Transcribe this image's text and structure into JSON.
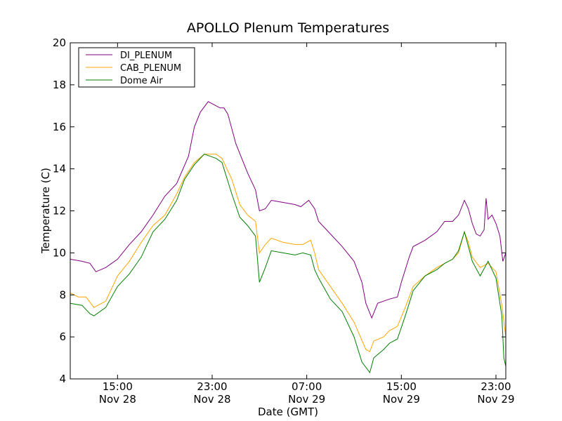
{
  "chart_data": {
    "type": "line",
    "title": "APOLLO Plenum Temperatures",
    "xlabel": "Date (GMT)",
    "ylabel": "Temperature (C)",
    "xlim": [
      "2023-11-28 11:00",
      "2023-11-29 23:50"
    ],
    "ylim": [
      4,
      20
    ],
    "grid": false,
    "legend_position": "top-left",
    "yticks": [
      4,
      6,
      8,
      10,
      12,
      14,
      16,
      18,
      20
    ],
    "xticks": [
      {
        "time": "2023-11-28 15:00",
        "line1": "15:00",
        "line2": "Nov 28"
      },
      {
        "time": "2023-11-28 23:00",
        "line1": "23:00",
        "line2": "Nov 28"
      },
      {
        "time": "2023-11-29 07:00",
        "line1": "07:00",
        "line2": "Nov 29"
      },
      {
        "time": "2023-11-29 15:00",
        "line1": "15:00",
        "line2": "Nov 29"
      },
      {
        "time": "2023-11-29 23:00",
        "line1": "23:00",
        "line2": "Nov 29"
      }
    ],
    "series": [
      {
        "name": "DI_PLENUM",
        "color": "#800080",
        "points": [
          [
            "2023-11-28 11:00",
            9.7
          ],
          [
            "2023-11-28 12:00",
            9.6
          ],
          [
            "2023-11-28 12:40",
            9.5
          ],
          [
            "2023-11-28 13:10",
            9.1
          ],
          [
            "2023-11-28 14:00",
            9.3
          ],
          [
            "2023-11-28 15:00",
            9.7
          ],
          [
            "2023-11-28 16:00",
            10.4
          ],
          [
            "2023-11-28 17:00",
            11.0
          ],
          [
            "2023-11-28 18:00",
            11.8
          ],
          [
            "2023-11-28 19:00",
            12.7
          ],
          [
            "2023-11-28 20:00",
            13.3
          ],
          [
            "2023-11-28 21:00",
            14.6
          ],
          [
            "2023-11-28 21:30",
            16.0
          ],
          [
            "2023-11-28 22:00",
            16.7
          ],
          [
            "2023-11-28 22:40",
            17.2
          ],
          [
            "2023-11-28 23:20",
            17.0
          ],
          [
            "2023-11-28 23:40",
            16.9
          ],
          [
            "2023-11-29 00:00",
            16.9
          ],
          [
            "2023-11-29 00:20",
            16.6
          ],
          [
            "2023-11-29 01:00",
            15.2
          ],
          [
            "2023-11-29 01:30",
            14.5
          ],
          [
            "2023-11-29 02:00",
            13.8
          ],
          [
            "2023-11-29 02:40",
            13.0
          ],
          [
            "2023-11-29 03:00",
            12.0
          ],
          [
            "2023-11-29 03:30",
            12.1
          ],
          [
            "2023-11-29 04:00",
            12.5
          ],
          [
            "2023-11-29 05:00",
            12.4
          ],
          [
            "2023-11-29 06:00",
            12.3
          ],
          [
            "2023-11-29 06:30",
            12.2
          ],
          [
            "2023-11-29 07:10",
            12.5
          ],
          [
            "2023-11-29 07:40",
            12.1
          ],
          [
            "2023-11-29 08:00",
            11.5
          ],
          [
            "2023-11-29 09:00",
            10.9
          ],
          [
            "2023-11-29 10:00",
            10.3
          ],
          [
            "2023-11-29 11:00",
            9.6
          ],
          [
            "2023-11-29 11:40",
            8.6
          ],
          [
            "2023-11-29 12:00",
            7.6
          ],
          [
            "2023-11-29 12:30",
            6.9
          ],
          [
            "2023-11-29 13:00",
            7.6
          ],
          [
            "2023-11-29 14:00",
            7.8
          ],
          [
            "2023-11-29 14:40",
            7.9
          ],
          [
            "2023-11-29 15:00",
            8.6
          ],
          [
            "2023-11-29 15:40",
            9.8
          ],
          [
            "2023-11-29 16:00",
            10.3
          ],
          [
            "2023-11-29 17:00",
            10.6
          ],
          [
            "2023-11-29 18:00",
            11.0
          ],
          [
            "2023-11-29 18:40",
            11.5
          ],
          [
            "2023-11-29 19:20",
            11.5
          ],
          [
            "2023-11-29 19:50",
            11.8
          ],
          [
            "2023-11-29 20:20",
            12.5
          ],
          [
            "2023-11-29 20:40",
            12.1
          ],
          [
            "2023-11-29 21:00",
            11.4
          ],
          [
            "2023-11-29 21:20",
            10.9
          ],
          [
            "2023-11-29 21:40",
            10.8
          ],
          [
            "2023-11-29 22:00",
            11.1
          ],
          [
            "2023-11-29 22:10",
            12.6
          ],
          [
            "2023-11-29 22:20",
            11.6
          ],
          [
            "2023-11-29 22:40",
            11.8
          ],
          [
            "2023-11-29 23:00",
            11.4
          ],
          [
            "2023-11-29 23:20",
            10.8
          ],
          [
            "2023-11-29 23:35",
            9.6
          ],
          [
            "2023-11-29 23:50",
            10.0
          ]
        ]
      },
      {
        "name": "CAB_PLENUM",
        "color": "#ffa500",
        "points": [
          [
            "2023-11-28 11:00",
            8.1
          ],
          [
            "2023-11-28 11:40",
            7.9
          ],
          [
            "2023-11-28 12:20",
            7.9
          ],
          [
            "2023-11-28 13:00",
            7.4
          ],
          [
            "2023-11-28 14:00",
            7.7
          ],
          [
            "2023-11-28 15:00",
            8.9
          ],
          [
            "2023-11-28 16:00",
            9.6
          ],
          [
            "2023-11-28 17:00",
            10.5
          ],
          [
            "2023-11-28 18:00",
            11.3
          ],
          [
            "2023-11-28 19:00",
            11.8
          ],
          [
            "2023-11-28 20:00",
            12.8
          ],
          [
            "2023-11-28 20:40",
            13.6
          ],
          [
            "2023-11-28 21:30",
            14.3
          ],
          [
            "2023-11-28 22:20",
            14.7
          ],
          [
            "2023-11-28 23:20",
            14.7
          ],
          [
            "2023-11-28 23:50",
            14.5
          ],
          [
            "2023-11-29 00:40",
            13.5
          ],
          [
            "2023-11-29 01:20",
            12.3
          ],
          [
            "2023-11-29 02:00",
            11.8
          ],
          [
            "2023-11-29 02:40",
            11.5
          ],
          [
            "2023-11-29 03:00",
            10.0
          ],
          [
            "2023-11-29 03:30",
            10.4
          ],
          [
            "2023-11-29 04:00",
            10.7
          ],
          [
            "2023-11-29 05:00",
            10.5
          ],
          [
            "2023-11-29 06:00",
            10.4
          ],
          [
            "2023-11-29 06:40",
            10.4
          ],
          [
            "2023-11-29 07:20",
            10.6
          ],
          [
            "2023-11-29 07:40",
            10.0
          ],
          [
            "2023-11-29 08:00",
            9.2
          ],
          [
            "2023-11-29 09:00",
            8.4
          ],
          [
            "2023-11-29 10:00",
            7.6
          ],
          [
            "2023-11-29 11:00",
            6.7
          ],
          [
            "2023-11-29 12:00",
            5.4
          ],
          [
            "2023-11-29 12:20",
            5.3
          ],
          [
            "2023-11-29 12:40",
            5.8
          ],
          [
            "2023-11-29 13:30",
            6.0
          ],
          [
            "2023-11-29 14:00",
            6.3
          ],
          [
            "2023-11-29 14:40",
            6.5
          ],
          [
            "2023-11-29 15:20",
            7.4
          ],
          [
            "2023-11-29 16:00",
            8.4
          ],
          [
            "2023-11-29 17:00",
            8.9
          ],
          [
            "2023-11-29 18:00",
            9.3
          ],
          [
            "2023-11-29 18:40",
            9.5
          ],
          [
            "2023-11-29 19:20",
            9.7
          ],
          [
            "2023-11-29 19:50",
            10.0
          ],
          [
            "2023-11-29 20:20",
            11.0
          ],
          [
            "2023-11-29 20:40",
            10.5
          ],
          [
            "2023-11-29 21:00",
            9.8
          ],
          [
            "2023-11-29 21:40",
            9.3
          ],
          [
            "2023-11-29 22:20",
            9.5
          ],
          [
            "2023-11-29 23:00",
            9.1
          ],
          [
            "2023-11-29 23:30",
            7.5
          ],
          [
            "2023-11-29 23:50",
            6.0
          ]
        ]
      },
      {
        "name": "Dome Air",
        "color": "#007f00",
        "points": [
          [
            "2023-11-28 11:00",
            7.6
          ],
          [
            "2023-11-28 12:00",
            7.5
          ],
          [
            "2023-11-28 12:40",
            7.1
          ],
          [
            "2023-11-28 13:00",
            7.0
          ],
          [
            "2023-11-28 14:00",
            7.4
          ],
          [
            "2023-11-28 15:00",
            8.4
          ],
          [
            "2023-11-28 16:00",
            9.0
          ],
          [
            "2023-11-28 17:00",
            9.8
          ],
          [
            "2023-11-28 18:00",
            11.0
          ],
          [
            "2023-11-28 19:00",
            11.6
          ],
          [
            "2023-11-28 20:00",
            12.5
          ],
          [
            "2023-11-28 20:40",
            13.5
          ],
          [
            "2023-11-28 21:30",
            14.2
          ],
          [
            "2023-11-28 22:20",
            14.7
          ],
          [
            "2023-11-28 23:20",
            14.5
          ],
          [
            "2023-11-28 23:50",
            14.3
          ],
          [
            "2023-11-29 00:40",
            12.8
          ],
          [
            "2023-11-29 01:20",
            11.7
          ],
          [
            "2023-11-29 02:00",
            11.3
          ],
          [
            "2023-11-29 02:40",
            10.8
          ],
          [
            "2023-11-29 03:00",
            8.6
          ],
          [
            "2023-11-29 03:30",
            9.3
          ],
          [
            "2023-11-29 04:00",
            10.1
          ],
          [
            "2023-11-29 05:00",
            10.0
          ],
          [
            "2023-11-29 06:00",
            9.9
          ],
          [
            "2023-11-29 06:40",
            10.0
          ],
          [
            "2023-11-29 07:20",
            9.9
          ],
          [
            "2023-11-29 07:40",
            9.2
          ],
          [
            "2023-11-29 08:00",
            8.8
          ],
          [
            "2023-11-29 09:00",
            7.8
          ],
          [
            "2023-11-29 10:00",
            7.2
          ],
          [
            "2023-11-29 11:00",
            6.0
          ],
          [
            "2023-11-29 11:40",
            4.8
          ],
          [
            "2023-11-29 12:20",
            4.3
          ],
          [
            "2023-11-29 12:40",
            5.0
          ],
          [
            "2023-11-29 13:30",
            5.4
          ],
          [
            "2023-11-29 14:00",
            5.7
          ],
          [
            "2023-11-29 14:40",
            5.9
          ],
          [
            "2023-11-29 15:20",
            7.0
          ],
          [
            "2023-11-29 16:00",
            8.2
          ],
          [
            "2023-11-29 17:00",
            8.9
          ],
          [
            "2023-11-29 18:00",
            9.2
          ],
          [
            "2023-11-29 18:40",
            9.5
          ],
          [
            "2023-11-29 19:20",
            9.7
          ],
          [
            "2023-11-29 19:50",
            10.1
          ],
          [
            "2023-11-29 20:20",
            11.0
          ],
          [
            "2023-11-29 20:40",
            10.3
          ],
          [
            "2023-11-29 21:00",
            9.6
          ],
          [
            "2023-11-29 21:40",
            8.9
          ],
          [
            "2023-11-29 22:20",
            9.6
          ],
          [
            "2023-11-29 23:00",
            8.8
          ],
          [
            "2023-11-29 23:30",
            7.0
          ],
          [
            "2023-11-29 23:40",
            5.0
          ],
          [
            "2023-11-29 23:50",
            4.6
          ]
        ]
      }
    ]
  }
}
